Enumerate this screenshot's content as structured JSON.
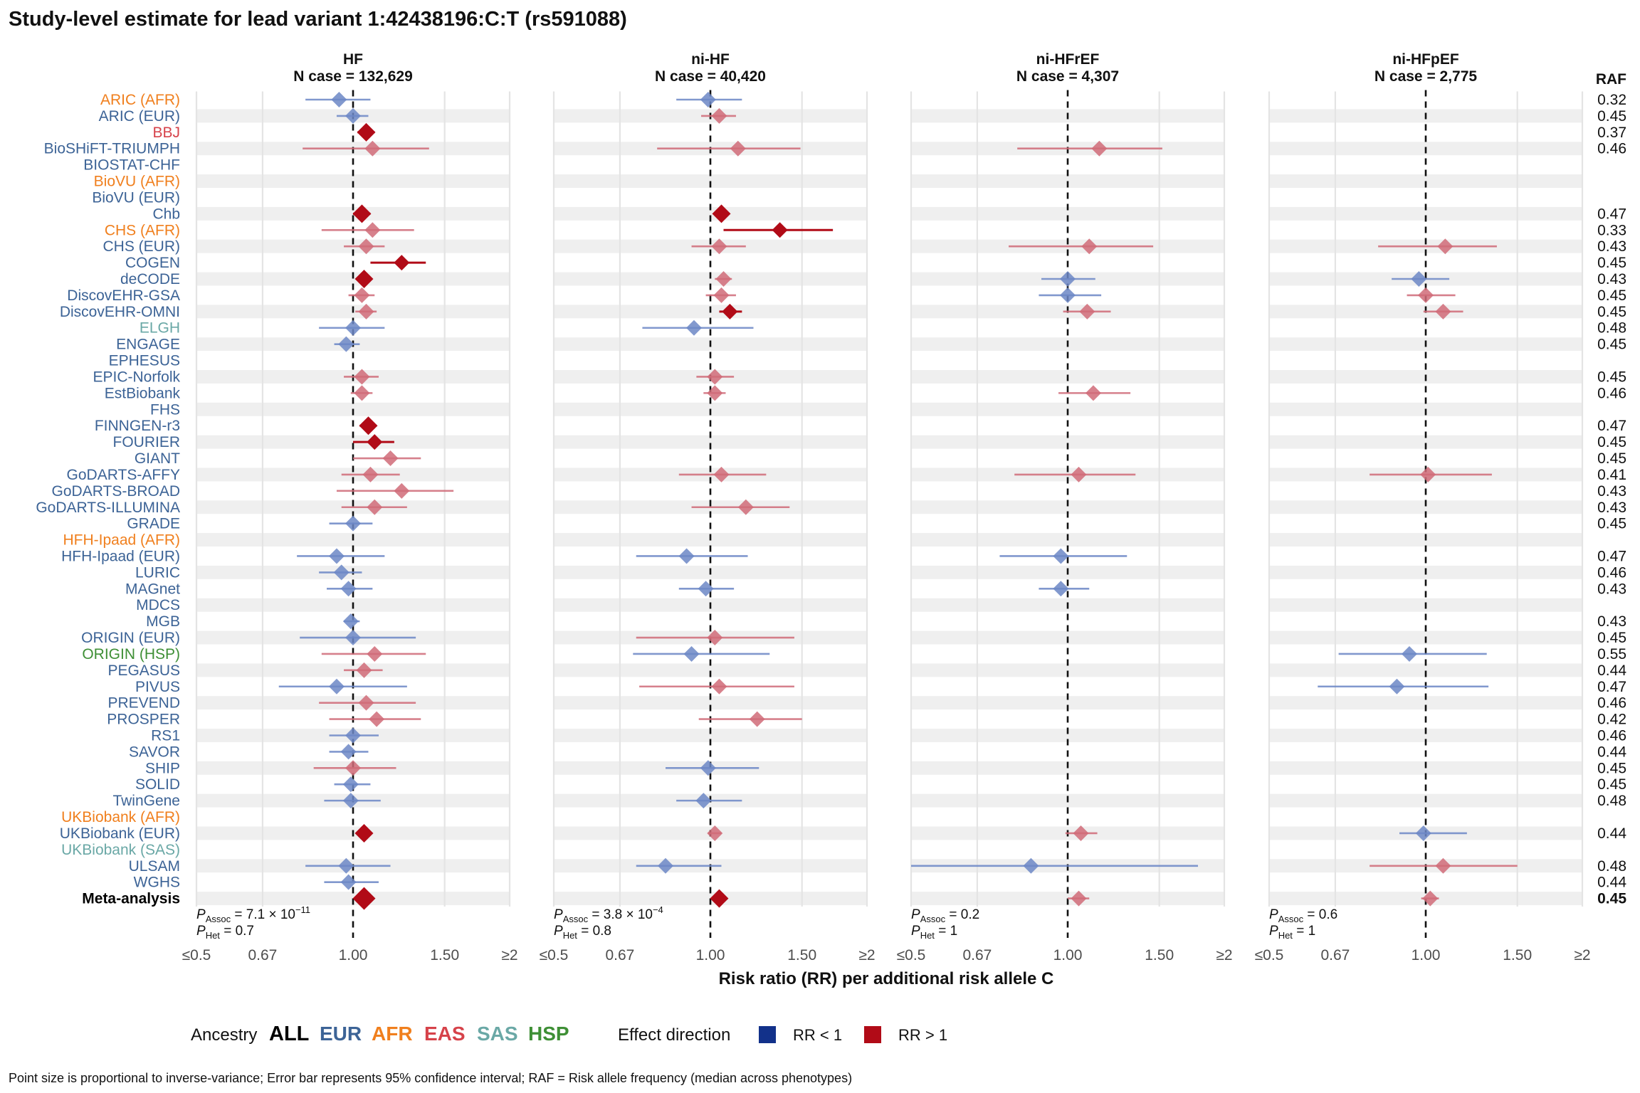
{
  "title": "Study-level estimate for lead variant 1:42438196:C:T (rs591088)",
  "xlabel": "Risk ratio (RR) per additional risk allele C",
  "raf_header": "RAF",
  "footnote": "Point size is proportional to inverse-variance; Error bar represents 95% confidence interval; RAF = Risk allele frequency (median across phenotypes)",
  "legend": {
    "ancestry_title": "Ancestry",
    "ancestries": [
      {
        "label": "ALL",
        "color": "#000000"
      },
      {
        "label": "EUR",
        "color": "#3c6396"
      },
      {
        "label": "AFR",
        "color": "#f07f1d"
      },
      {
        "label": "EAS",
        "color": "#d6424a"
      },
      {
        "label": "SAS",
        "color": "#6aa8a6"
      },
      {
        "label": "HSP",
        "color": "#3e8f35"
      }
    ],
    "effect_title": "Effect direction",
    "effects": [
      {
        "label": "RR < 1",
        "color": "#12318a"
      },
      {
        "label": "RR > 1",
        "color": "#b10b17"
      }
    ]
  },
  "colors": {
    "blue": "#6c87c6",
    "red": "#d06b78",
    "darkred": "#b10b17",
    "stripe": "#efefef",
    "grid": "#e4e4e4"
  },
  "chart_data": {
    "type": "forest",
    "axis_ticks": [
      {
        "value": 0.5,
        "label": "≤0.5"
      },
      {
        "value": 0.67,
        "label": "0.67"
      },
      {
        "value": 1.0,
        "label": "1.00"
      },
      {
        "value": 1.5,
        "label": "1.50"
      },
      {
        "value": 2.0,
        "label": "≥2"
      }
    ],
    "xlim": [
      0.5,
      2.0
    ],
    "xscale": "log",
    "reference_line": 1.0,
    "panels": [
      {
        "name": "HF",
        "ncase": "N case = 132,629",
        "p_assoc": "7.1 × 10",
        "p_assoc_exp": "−11",
        "p_het": "0.7"
      },
      {
        "name": "ni-HF",
        "ncase": "N case = 40,420",
        "p_assoc": "3.8 × 10",
        "p_assoc_exp": "−4",
        "p_het": "0.8"
      },
      {
        "name": "ni-HFrEF",
        "ncase": "N case = 4,307",
        "p_assoc": "0.2",
        "p_assoc_exp": "",
        "p_het": "1"
      },
      {
        "name": "ni-HFpEF",
        "ncase": "N case = 2,775",
        "p_assoc": "0.6",
        "p_assoc_exp": "",
        "p_het": "1"
      }
    ],
    "studies": [
      {
        "label": "ARIC (AFR)",
        "anc": "AFR",
        "raf": "0.32",
        "est": [
          [
            0.94,
            0.81,
            1.08,
            "b",
            1
          ],
          [
            0.99,
            0.86,
            1.15,
            "b",
            1
          ],
          null,
          null
        ]
      },
      {
        "label": "ARIC (EUR)",
        "anc": "EUR",
        "raf": "0.45",
        "est": [
          [
            1.0,
            0.93,
            1.07,
            "b",
            1
          ],
          [
            1.04,
            0.96,
            1.12,
            "r",
            1
          ],
          null,
          null
        ]
      },
      {
        "label": "BBJ",
        "anc": "EAS",
        "raf": "0.37",
        "est": [
          [
            1.06,
            1.02,
            1.1,
            "dr",
            2
          ],
          null,
          null,
          null
        ]
      },
      {
        "label": "BioSHiFT-TRIUMPH",
        "anc": "EUR",
        "raf": "0.46",
        "est": [
          [
            1.09,
            0.8,
            1.4,
            "r",
            1
          ],
          [
            1.13,
            0.79,
            1.49,
            "r",
            1
          ],
          [
            1.15,
            0.8,
            1.52,
            "r",
            1
          ],
          null
        ]
      },
      {
        "label": "BIOSTAT-CHF",
        "anc": "EUR",
        "raf": "",
        "est": [
          null,
          null,
          null,
          null
        ]
      },
      {
        "label": "BioVU (AFR)",
        "anc": "AFR",
        "raf": "",
        "est": [
          null,
          null,
          null,
          null
        ]
      },
      {
        "label": "BioVU (EUR)",
        "anc": "EUR",
        "raf": "",
        "est": [
          null,
          null,
          null,
          null
        ]
      },
      {
        "label": "Chb",
        "anc": "EUR",
        "raf": "0.47",
        "est": [
          [
            1.04,
            1.0,
            1.08,
            "dr",
            2
          ],
          [
            1.05,
            1.02,
            1.08,
            "dr",
            2
          ],
          null,
          null
        ]
      },
      {
        "label": "CHS (AFR)",
        "anc": "AFR",
        "raf": "0.33",
        "est": [
          [
            1.09,
            0.87,
            1.31,
            "r",
            1
          ],
          [
            1.36,
            1.06,
            1.72,
            "dr",
            1
          ],
          null,
          null
        ]
      },
      {
        "label": "CHS (EUR)",
        "anc": "EUR",
        "raf": "0.43",
        "est": [
          [
            1.06,
            0.96,
            1.15,
            "r",
            1
          ],
          [
            1.04,
            0.92,
            1.17,
            "r",
            1
          ],
          [
            1.1,
            0.77,
            1.46,
            "r",
            1
          ],
          [
            1.09,
            0.81,
            1.37,
            "r",
            1
          ]
        ]
      },
      {
        "label": "COGEN",
        "anc": "EUR",
        "raf": "0.45",
        "est": [
          [
            1.24,
            1.08,
            1.38,
            "dr",
            1
          ],
          null,
          null,
          null
        ]
      },
      {
        "label": "deCODE",
        "anc": "EUR",
        "raf": "0.43",
        "est": [
          [
            1.05,
            1.02,
            1.08,
            "dr",
            2
          ],
          [
            1.06,
            1.02,
            1.1,
            "r",
            1
          ],
          [
            1.0,
            0.89,
            1.13,
            "b",
            1
          ],
          [
            0.97,
            0.86,
            1.11,
            "b",
            1
          ]
        ]
      },
      {
        "label": "DiscovEHR-GSA",
        "anc": "EUR",
        "raf": "0.45",
        "est": [
          [
            1.04,
            0.98,
            1.1,
            "r",
            1
          ],
          [
            1.05,
            0.98,
            1.12,
            "r",
            1
          ],
          [
            1.0,
            0.88,
            1.16,
            "b",
            1
          ],
          [
            1.0,
            0.92,
            1.14,
            "r",
            1
          ]
        ]
      },
      {
        "label": "DiscovEHR-OMNI",
        "anc": "EUR",
        "raf": "0.45",
        "est": [
          [
            1.06,
            1.01,
            1.11,
            "r",
            1
          ],
          [
            1.09,
            1.04,
            1.15,
            "dr",
            1
          ],
          [
            1.09,
            0.98,
            1.21,
            "r",
            1
          ],
          [
            1.08,
            0.99,
            1.18,
            "r",
            1
          ]
        ]
      },
      {
        "label": "ELGH",
        "anc": "SAS",
        "raf": "0.48",
        "est": [
          [
            1.0,
            0.86,
            1.15,
            "b",
            1
          ],
          [
            0.93,
            0.74,
            1.21,
            "b",
            1
          ],
          null,
          null
        ]
      },
      {
        "label": "ENGAGE",
        "anc": "EUR",
        "raf": "0.45",
        "est": [
          [
            0.97,
            0.92,
            1.03,
            "b",
            1
          ],
          null,
          null,
          null
        ]
      },
      {
        "label": "EPHESUS",
        "anc": "EUR",
        "raf": "",
        "est": [
          null,
          null,
          null,
          null
        ]
      },
      {
        "label": "EPIC-Norfolk",
        "anc": "EUR",
        "raf": "0.45",
        "est": [
          [
            1.04,
            0.96,
            1.12,
            "r",
            1
          ],
          [
            1.02,
            0.94,
            1.11,
            "r",
            1
          ],
          null,
          null
        ]
      },
      {
        "label": "EstBiobank",
        "anc": "EUR",
        "raf": "0.46",
        "est": [
          [
            1.04,
            0.99,
            1.09,
            "r",
            1
          ],
          [
            1.02,
            0.97,
            1.07,
            "r",
            1
          ],
          [
            1.12,
            0.96,
            1.32,
            "r",
            1
          ],
          null
        ]
      },
      {
        "label": "FHS",
        "anc": "EUR",
        "raf": "",
        "est": [
          null,
          null,
          null,
          null
        ]
      },
      {
        "label": "FINNGEN-r3",
        "anc": "EUR",
        "raf": "0.47",
        "est": [
          [
            1.07,
            1.03,
            1.11,
            "dr",
            2
          ],
          null,
          null,
          null
        ]
      },
      {
        "label": "FOURIER",
        "anc": "EUR",
        "raf": "0.45",
        "est": [
          [
            1.1,
            1.0,
            1.2,
            "dr",
            1
          ],
          null,
          null,
          null
        ]
      },
      {
        "label": "GIANT",
        "anc": "EUR",
        "raf": "0.45",
        "est": [
          [
            1.18,
            1.0,
            1.35,
            "r",
            1
          ],
          null,
          null,
          null
        ]
      },
      {
        "label": "GoDARTS-AFFY",
        "anc": "EUR",
        "raf": "0.41",
        "est": [
          [
            1.08,
            0.95,
            1.23,
            "r",
            1
          ],
          [
            1.05,
            0.87,
            1.28,
            "r",
            1
          ],
          [
            1.05,
            0.79,
            1.35,
            "r",
            1
          ],
          [
            1.01,
            0.78,
            1.34,
            "r",
            1
          ]
        ]
      },
      {
        "label": "GoDARTS-BROAD",
        "anc": "EUR",
        "raf": "0.43",
        "est": [
          [
            1.24,
            0.93,
            1.56,
            "r",
            1
          ],
          null,
          null,
          null
        ]
      },
      {
        "label": "GoDARTS-ILLUMINA",
        "anc": "EUR",
        "raf": "0.43",
        "est": [
          [
            1.1,
            0.95,
            1.27,
            "r",
            1
          ],
          [
            1.17,
            0.92,
            1.42,
            "r",
            1
          ],
          null,
          null
        ]
      },
      {
        "label": "GRADE",
        "anc": "EUR",
        "raf": "0.45",
        "est": [
          [
            1.0,
            0.9,
            1.09,
            "b",
            1
          ],
          null,
          null,
          null
        ]
      },
      {
        "label": "HFH-Ipaad (AFR)",
        "anc": "AFR",
        "raf": "",
        "est": [
          null,
          null,
          null,
          null
        ]
      },
      {
        "label": "HFH-Ipaad (EUR)",
        "anc": "EUR",
        "raf": "0.47",
        "est": [
          [
            0.93,
            0.78,
            1.15,
            "b",
            1
          ],
          [
            0.9,
            0.72,
            1.18,
            "b",
            1
          ],
          [
            0.97,
            0.74,
            1.3,
            "b",
            1
          ],
          null
        ]
      },
      {
        "label": "LURIC",
        "anc": "EUR",
        "raf": "0.46",
        "est": [
          [
            0.95,
            0.86,
            1.04,
            "b",
            1
          ],
          null,
          null,
          null
        ]
      },
      {
        "label": "MAGnet",
        "anc": "EUR",
        "raf": "0.43",
        "est": [
          [
            0.98,
            0.89,
            1.09,
            "b",
            1
          ],
          [
            0.98,
            0.87,
            1.11,
            "b",
            1
          ],
          [
            0.97,
            0.88,
            1.1,
            "b",
            1
          ],
          null
        ]
      },
      {
        "label": "MDCS",
        "anc": "EUR",
        "raf": "",
        "est": [
          null,
          null,
          null,
          null
        ]
      },
      {
        "label": "MGB",
        "anc": "EUR",
        "raf": "0.43",
        "est": [
          [
            0.99,
            0.96,
            1.03,
            "b",
            1
          ],
          null,
          null,
          null
        ]
      },
      {
        "label": "ORIGIN (EUR)",
        "anc": "EUR",
        "raf": "0.45",
        "est": [
          [
            1.0,
            0.79,
            1.32,
            "b",
            1
          ],
          [
            1.02,
            0.72,
            1.45,
            "r",
            1
          ],
          null,
          null
        ]
      },
      {
        "label": "ORIGIN (HSP)",
        "anc": "HSP",
        "raf": "0.55",
        "est": [
          [
            1.1,
            0.87,
            1.38,
            "r",
            1
          ],
          [
            0.92,
            0.71,
            1.3,
            "b",
            1
          ],
          null,
          [
            0.93,
            0.68,
            1.31,
            "b",
            1
          ]
        ]
      },
      {
        "label": "PEGASUS",
        "anc": "EUR",
        "raf": "0.44",
        "est": [
          [
            1.05,
            0.96,
            1.14,
            "r",
            1
          ],
          null,
          null,
          null
        ]
      },
      {
        "label": "PIVUS",
        "anc": "EUR",
        "raf": "0.47",
        "est": [
          [
            0.93,
            0.72,
            1.27,
            "b",
            1
          ],
          [
            1.04,
            0.73,
            1.45,
            "r",
            1
          ],
          null,
          [
            0.88,
            0.62,
            1.32,
            "b",
            1
          ]
        ]
      },
      {
        "label": "PREVEND",
        "anc": "EUR",
        "raf": "0.46",
        "est": [
          [
            1.06,
            0.86,
            1.32,
            "r",
            1
          ],
          null,
          null,
          null
        ]
      },
      {
        "label": "PROSPER",
        "anc": "EUR",
        "raf": "0.42",
        "est": [
          [
            1.11,
            0.9,
            1.35,
            "r",
            1
          ],
          [
            1.23,
            0.95,
            1.5,
            "r",
            1
          ],
          null,
          null
        ]
      },
      {
        "label": "RS1",
        "anc": "EUR",
        "raf": "0.46",
        "est": [
          [
            1.0,
            0.9,
            1.12,
            "b",
            1
          ],
          null,
          null,
          null
        ]
      },
      {
        "label": "SAVOR",
        "anc": "EUR",
        "raf": "0.44",
        "est": [
          [
            0.98,
            0.9,
            1.07,
            "b",
            1
          ],
          null,
          null,
          null
        ]
      },
      {
        "label": "SHIP",
        "anc": "EUR",
        "raf": "0.45",
        "est": [
          [
            1.0,
            0.84,
            1.21,
            "r",
            1
          ],
          [
            0.99,
            0.82,
            1.24,
            "b",
            1
          ],
          null,
          null
        ]
      },
      {
        "label": "SOLID",
        "anc": "EUR",
        "raf": "0.45",
        "est": [
          [
            0.99,
            0.92,
            1.08,
            "b",
            1
          ],
          null,
          null,
          null
        ]
      },
      {
        "label": "TwinGene",
        "anc": "EUR",
        "raf": "0.48",
        "est": [
          [
            0.99,
            0.88,
            1.13,
            "b",
            1
          ],
          [
            0.97,
            0.86,
            1.15,
            "b",
            1
          ],
          null,
          null
        ]
      },
      {
        "label": "UKBiobank (AFR)",
        "anc": "AFR",
        "raf": "",
        "est": [
          null,
          null,
          null,
          null
        ]
      },
      {
        "label": "UKBiobank (EUR)",
        "anc": "EUR",
        "raf": "0.44",
        "est": [
          [
            1.05,
            1.03,
            1.07,
            "dr",
            2
          ],
          [
            1.02,
            0.99,
            1.05,
            "r",
            1
          ],
          [
            1.06,
            0.99,
            1.14,
            "r",
            1
          ],
          [
            0.99,
            0.89,
            1.2,
            "b",
            1
          ]
        ]
      },
      {
        "label": "UKBiobank (SAS)",
        "anc": "SAS",
        "raf": "",
        "est": [
          null,
          null,
          null,
          null
        ]
      },
      {
        "label": "ULSAM",
        "anc": "EUR",
        "raf": "0.48",
        "est": [
          [
            0.97,
            0.81,
            1.18,
            "b",
            1
          ],
          [
            0.82,
            0.72,
            1.05,
            "b",
            1
          ],
          [
            0.85,
            0.5,
            1.78,
            "b",
            1
          ],
          [
            1.08,
            0.78,
            1.5,
            "r",
            1
          ]
        ]
      },
      {
        "label": "WGHS",
        "anc": "EUR",
        "raf": "0.44",
        "est": [
          [
            0.98,
            0.88,
            1.12,
            "b",
            1
          ],
          null,
          null,
          null
        ]
      },
      {
        "label": "Meta-analysis",
        "anc": "ALL",
        "raf": "0.45",
        "meta": true,
        "est": [
          [
            1.05,
            1.03,
            1.07,
            "dr",
            3
          ],
          [
            1.04,
            1.02,
            1.06,
            "dr",
            2
          ],
          [
            1.05,
            1.0,
            1.1,
            "r",
            1
          ],
          [
            1.02,
            0.98,
            1.06,
            "r",
            1
          ]
        ]
      }
    ]
  }
}
